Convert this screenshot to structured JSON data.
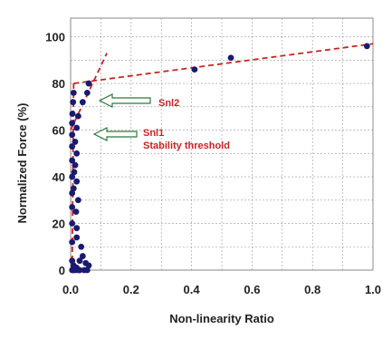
{
  "chart_data": {
    "type": "scatter",
    "title": "",
    "xlabel": "Non-linearity Ratio",
    "ylabel": "Normalized Force (%)",
    "xlim": [
      0.0,
      1.0
    ],
    "ylim": [
      0,
      108
    ],
    "x_ticks": [
      "0.0",
      "0.2",
      "0.4",
      "0.6",
      "0.8",
      "1.0"
    ],
    "y_ticks": [
      "0",
      "20",
      "40",
      "60",
      "80",
      "100"
    ],
    "x_tick_values": [
      0.0,
      0.2,
      0.4,
      0.6,
      0.8,
      1.0
    ],
    "y_tick_values": [
      0,
      20,
      40,
      60,
      80,
      100
    ],
    "grid": true,
    "series": [
      {
        "points": [
          [
            0.005,
            0
          ],
          [
            0.01,
            0
          ],
          [
            0.015,
            0
          ],
          [
            0.025,
            0
          ],
          [
            0.03,
            0
          ],
          [
            0.045,
            0
          ],
          [
            0.055,
            0
          ],
          [
            0.01,
            2
          ],
          [
            0.02,
            1
          ],
          [
            0.03,
            4
          ],
          [
            0.05,
            3
          ],
          [
            0.06,
            2
          ],
          [
            0.04,
            6
          ],
          [
            0.035,
            10
          ],
          [
            0.005,
            4
          ],
          [
            0.005,
            12
          ],
          [
            0.005,
            20
          ],
          [
            0.005,
            27
          ],
          [
            0.005,
            33
          ],
          [
            0.005,
            40
          ],
          [
            0.005,
            47
          ],
          [
            0.005,
            53
          ],
          [
            0.005,
            58
          ],
          [
            0.005,
            63
          ],
          [
            0.006,
            67
          ],
          [
            0.008,
            72
          ],
          [
            0.01,
            76
          ],
          [
            0.02,
            18
          ],
          [
            0.025,
            30
          ],
          [
            0.02,
            38
          ],
          [
            0.015,
            45
          ],
          [
            0.02,
            50
          ],
          [
            0.015,
            55
          ],
          [
            0.02,
            61
          ],
          [
            0.012,
            42
          ],
          [
            0.01,
            35
          ],
          [
            0.018,
            25
          ],
          [
            0.02,
            14
          ],
          [
            0.025,
            66
          ],
          [
            0.04,
            72
          ],
          [
            0.055,
            76
          ],
          [
            0.06,
            80
          ],
          [
            0.41,
            86
          ],
          [
            0.53,
            91
          ],
          [
            0.98,
            96
          ]
        ]
      }
    ],
    "fit_lines": [
      {
        "from": [
          0.01,
          80
        ],
        "to": [
          1.0,
          97
        ]
      },
      {
        "from": [
          0.0,
          60
        ],
        "to": [
          0.12,
          93
        ]
      },
      {
        "from": [
          0.005,
          0
        ],
        "to": [
          0.01,
          80
        ]
      }
    ],
    "annotations": {
      "snl2": "Snl2",
      "snl1": "Snl1",
      "stability": "Stability threshold"
    },
    "colors": {
      "marker": "#1a1a70",
      "fit_line": "#cc2222",
      "annotation_text": "#cc2222",
      "arrow": "#2a7a3a",
      "grid": "#999999"
    }
  }
}
